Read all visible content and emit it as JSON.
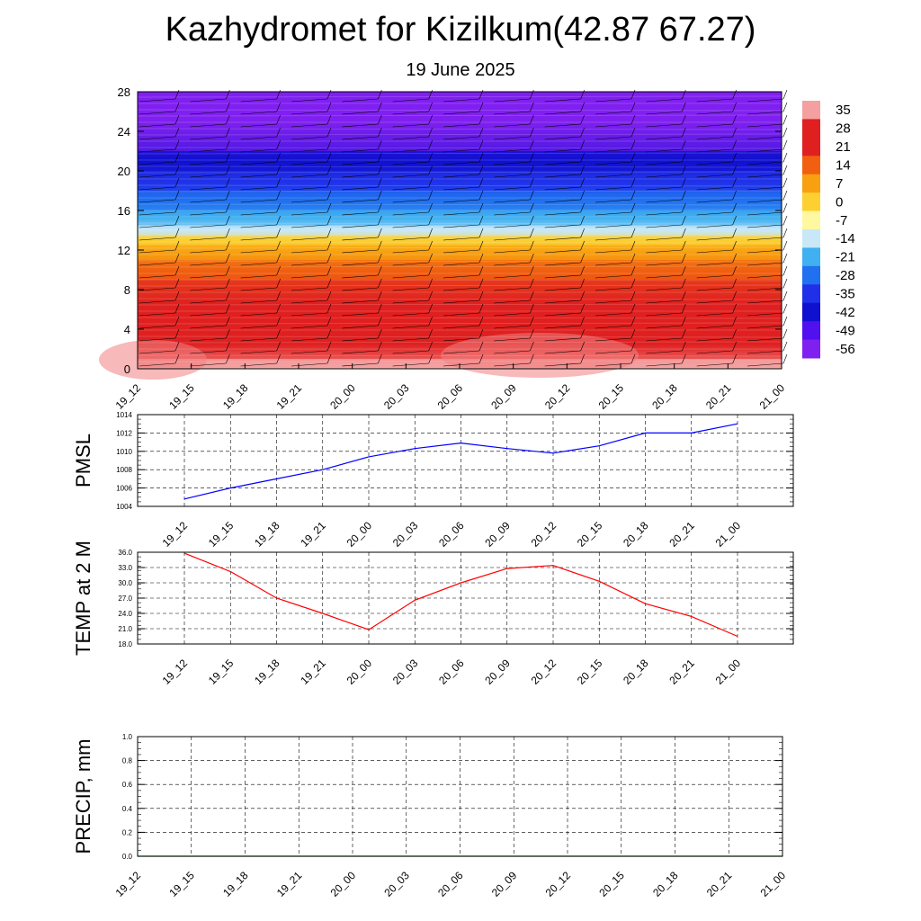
{
  "title": "Kazhydromet for Kizilkum(42.87 67.27)",
  "subtitle": "19 June 2025",
  "colorbar": {
    "labels": [
      "35",
      "28",
      "21",
      "14",
      "7",
      "0",
      "-7",
      "-14",
      "-21",
      "-28",
      "-35",
      "-42",
      "-49",
      "-56"
    ],
    "colors": [
      "#f4a0a0",
      "#e02020",
      "#e02020",
      "#f06010",
      "#f8a010",
      "#fcd030",
      "#fff8a0",
      "#c8e8f8",
      "#40b0f0",
      "#2070f0",
      "#2030e8",
      "#1010d0",
      "#5010f0",
      "#8020f0"
    ]
  },
  "chart_data": [
    {
      "type": "heatmap",
      "description_hidden": false,
      "title": "",
      "xlabel": "",
      "ylabel": "",
      "x_tick_labels": [
        "19_12",
        "19_15",
        "19_18",
        "19_21",
        "20_00",
        "20_03",
        "20_06",
        "20_09",
        "20_12",
        "20_15",
        "20_18",
        "20_21",
        "21_00"
      ],
      "y_tick_labels": [
        "0",
        "4",
        "8",
        "12",
        "16",
        "20",
        "24",
        "28"
      ],
      "ylim": [
        0,
        28
      ],
      "field": "temperature",
      "layers": [
        {
          "y0": 0,
          "y1": 1,
          "value": 33
        },
        {
          "y0": 1,
          "y1": 4,
          "value": 28
        },
        {
          "y0": 4,
          "y1": 9,
          "value": 21
        },
        {
          "y0": 9,
          "y1": 11,
          "value": 14
        },
        {
          "y0": 11,
          "y1": 12.5,
          "value": 7
        },
        {
          "y0": 12.5,
          "y1": 13.5,
          "value": 0
        },
        {
          "y0": 13.5,
          "y1": 14.5,
          "value": -14
        },
        {
          "y0": 14.5,
          "y1": 16,
          "value": -21
        },
        {
          "y0": 16,
          "y1": 18,
          "value": -28
        },
        {
          "y0": 18,
          "y1": 20,
          "value": -35
        },
        {
          "y0": 20,
          "y1": 22,
          "value": -42
        },
        {
          "y0": 22,
          "y1": 28,
          "value": -56
        }
      ]
    },
    {
      "type": "line",
      "ylabel": "PMSL",
      "x_tick_labels": [
        "19_12",
        "19_15",
        "19_18",
        "19_21",
        "20_00",
        "20_03",
        "20_06",
        "20_09",
        "20_12",
        "20_15",
        "20_18",
        "20_21",
        "21_00"
      ],
      "ylim": [
        1004,
        1014
      ],
      "y_ticks": [
        "1004",
        "1006",
        "1008",
        "1010",
        "1012",
        "1014"
      ],
      "values": [
        1004.8,
        1006.0,
        1007.0,
        1008.0,
        1009.4,
        1010.3,
        1010.9,
        1010.3,
        1009.8,
        1010.6,
        1012.0,
        1012.0,
        1013.0
      ],
      "color": "#0000ff"
    },
    {
      "type": "line",
      "ylabel": "TEMP at 2 M",
      "x_tick_labels": [
        "19_12",
        "19_15",
        "19_18",
        "19_21",
        "20_00",
        "20_03",
        "20_06",
        "20_09",
        "20_12",
        "20_15",
        "20_18",
        "20_21",
        "21_00"
      ],
      "ylim": [
        18,
        36
      ],
      "y_ticks": [
        "18.0",
        "21.0",
        "24.0",
        "27.0",
        "30.0",
        "33.0",
        "36.0"
      ],
      "values": [
        35.8,
        32.2,
        27.0,
        24.0,
        20.8,
        26.6,
        30.0,
        32.8,
        33.4,
        30.3,
        25.9,
        23.4,
        19.5
      ],
      "color": "#ff0000"
    },
    {
      "type": "line",
      "ylabel": "PRECIP, mm",
      "x_tick_labels": [
        "19_12",
        "19_15",
        "19_18",
        "19_21",
        "20_00",
        "20_03",
        "20_06",
        "20_09",
        "20_12",
        "20_15",
        "20_18",
        "20_21",
        "21_00"
      ],
      "ylim": [
        0,
        1
      ],
      "y_ticks": [
        "0.0",
        "0.2",
        "0.4",
        "0.6",
        "0.8",
        "1.0"
      ],
      "values": [
        0,
        0,
        0,
        0,
        0,
        0,
        0,
        0,
        0,
        0,
        0,
        0,
        0
      ],
      "color": "#008000"
    }
  ]
}
